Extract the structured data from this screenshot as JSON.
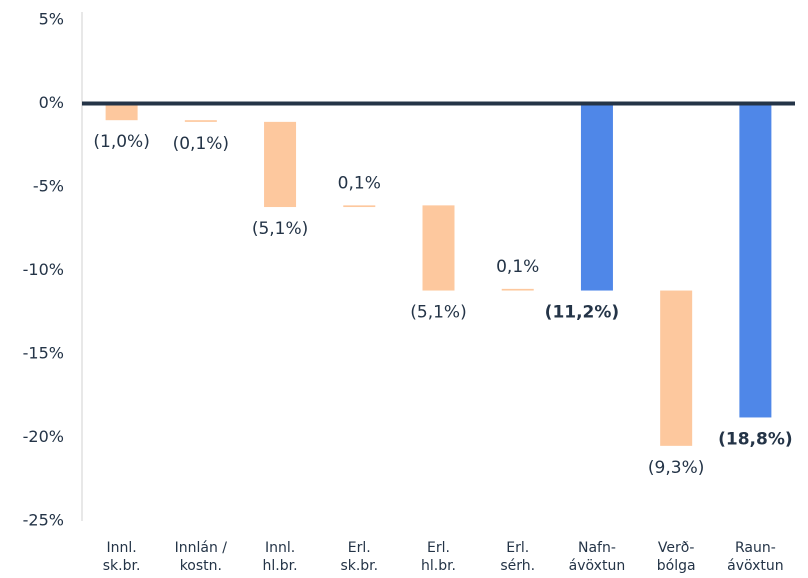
{
  "chart_data": {
    "type": "waterfall",
    "categories": [
      [
        "Innl.",
        "sk.br."
      ],
      [
        "Innlán /",
        "kostn."
      ],
      [
        "Innl.",
        "hl.br."
      ],
      [
        "Erl.",
        "sk.br."
      ],
      [
        "Erl.",
        "hl.br."
      ],
      [
        "Erl.",
        "sérh."
      ],
      [
        "Nafn-",
        "ávöxtun"
      ],
      [
        "Verð-",
        "bólga"
      ],
      [
        "Raun-",
        "ávöxtun"
      ]
    ],
    "values": [
      -1.0,
      -0.1,
      -5.1,
      0.1,
      -5.1,
      0.1,
      -11.2,
      -9.3,
      -18.8
    ],
    "value_labels": [
      "(1,0%)",
      "(0,1%)",
      "(5,1%)",
      "0,1%",
      "(5,1%)",
      "0,1%",
      "(11,2%)",
      "(9,3%)",
      "(18,8%)"
    ],
    "totals": [
      false,
      false,
      false,
      false,
      false,
      false,
      true,
      false,
      true
    ],
    "color": "#fdc89e",
    "total_color": "#4f87e8",
    "ylim": [
      -25,
      5
    ],
    "yticks": [
      {
        "value": 5,
        "label": "5%"
      },
      {
        "value": 0,
        "label": "0%"
      },
      {
        "value": -5,
        "label": "-5%"
      },
      {
        "value": -10,
        "label": "-10%"
      },
      {
        "value": -15,
        "label": "-15%"
      },
      {
        "value": -20,
        "label": "-20%"
      },
      {
        "value": -25,
        "label": "-25%"
      }
    ]
  }
}
